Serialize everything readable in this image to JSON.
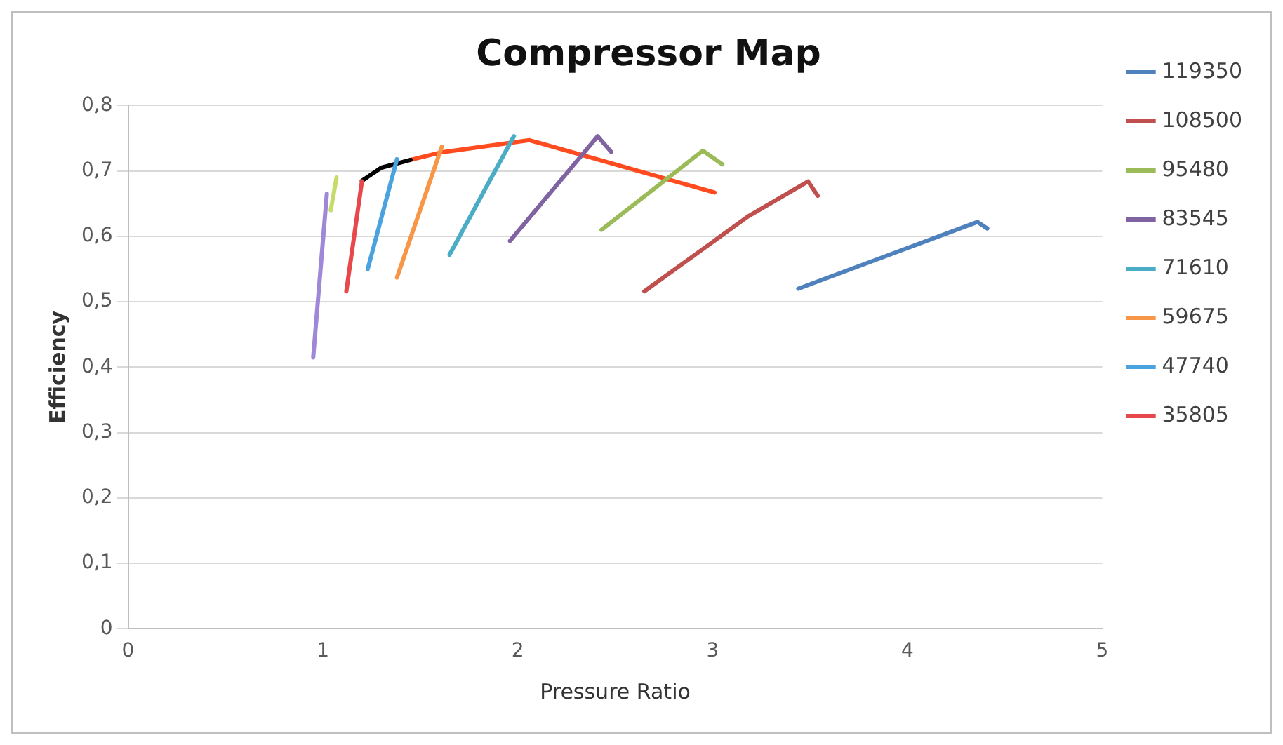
{
  "chart_data": {
    "type": "line",
    "title": "Compressor Map",
    "xlabel": "Pressure Ratio",
    "ylabel": "Efficiency",
    "xlim": [
      0,
      5
    ],
    "xticks": [
      0,
      1,
      2,
      3,
      4,
      5
    ],
    "ylim": [
      0,
      0.8
    ],
    "yticks": [
      0,
      {
        "value": 0.1,
        "label": "0,1"
      },
      {
        "value": 0.2,
        "label": "0,2"
      },
      {
        "value": 0.3,
        "label": "0,3"
      },
      {
        "value": 0.4,
        "label": "0,4"
      },
      {
        "value": 0.5,
        "label": "0,5"
      },
      {
        "value": 0.6,
        "label": "0,6"
      },
      {
        "value": 0.7,
        "label": "0,7"
      },
      {
        "value": 0.8,
        "label": "0,8"
      }
    ],
    "grid": "y",
    "legend": "right",
    "marker": "none",
    "line_style": "solid",
    "series": [
      {
        "name": "119350",
        "color": "#4f81bd",
        "x": [
          3.44,
          4.36,
          4.41
        ],
        "values": [
          0.52,
          0.622,
          0.612
        ]
      },
      {
        "name": "108500",
        "color": "#c0504d",
        "x": [
          2.65,
          3.18,
          3.49,
          3.54
        ],
        "values": [
          0.516,
          0.63,
          0.684,
          0.662
        ]
      },
      {
        "name": "95480",
        "color": "#9bbb59",
        "x": [
          2.43,
          2.95,
          3.05
        ],
        "values": [
          0.61,
          0.731,
          0.71
        ]
      },
      {
        "name": "83545",
        "color": "#8064a2",
        "x": [
          1.96,
          2.41,
          2.48
        ],
        "values": [
          0.593,
          0.753,
          0.729
        ]
      },
      {
        "name": "71610",
        "color": "#4bacc6",
        "x": [
          1.65,
          1.98
        ],
        "values": [
          0.572,
          0.753
        ]
      },
      {
        "name": "59675",
        "color": "#f79646",
        "x": [
          1.38,
          1.61
        ],
        "values": [
          0.537,
          0.737
        ]
      },
      {
        "name": "47740",
        "color": "#4aa3df",
        "x": [
          1.23,
          1.38
        ],
        "values": [
          0.55,
          0.718
        ]
      },
      {
        "name": "35805",
        "color": "#e8474c",
        "x": [
          1.12,
          1.2
        ],
        "values": [
          0.516,
          0.684
        ]
      },
      {
        "color": "#9f88d8",
        "x": [
          0.95,
          1.02
        ],
        "values": [
          0.415,
          0.665
        ]
      },
      {
        "color": "#c6dc6a",
        "x": [
          1.04,
          1.07
        ],
        "values": [
          0.64,
          0.69
        ]
      },
      {
        "color": "#000000",
        "x": [
          1.2,
          1.3,
          1.45
        ],
        "values": [
          0.685,
          0.705,
          0.717
        ]
      },
      {
        "color": "#ff4b1f",
        "x": [
          1.45,
          1.6,
          2.06,
          3.01
        ],
        "values": [
          0.717,
          0.728,
          0.747,
          0.667
        ]
      }
    ]
  }
}
